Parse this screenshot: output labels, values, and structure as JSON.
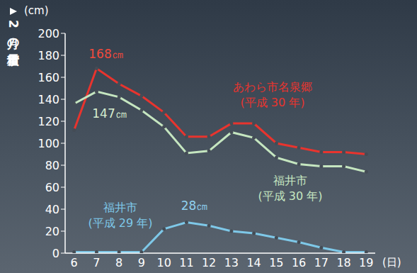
{
  "chart_data": {
    "type": "line",
    "ylabel": "2月の積雪量",
    "yunit": "(cm)",
    "xunit": "(日)",
    "x": [
      6,
      7,
      8,
      9,
      10,
      11,
      12,
      13,
      14,
      15,
      16,
      17,
      18,
      19
    ],
    "xlim": [
      5.6,
      19.4
    ],
    "xticks": [
      6,
      7,
      8,
      9,
      10,
      11,
      12,
      13,
      14,
      15,
      16,
      17,
      18,
      19
    ],
    "ylim": [
      0,
      200
    ],
    "yticks": [
      0,
      20,
      40,
      60,
      80,
      100,
      120,
      140,
      160,
      180,
      200
    ],
    "grid": false,
    "series": [
      {
        "name": "あわら市名泉郷",
        "period": "(平成 30 年)",
        "color": "#e8342e",
        "marker": "circle",
        "values": [
          112,
          168,
          154,
          143,
          128,
          106,
          106,
          118,
          118,
          100,
          96,
          92,
          92,
          90
        ]
      },
      {
        "name": "福井市",
        "period": "(平成 30 年)",
        "color": "#c5e6c0",
        "marker": "circle",
        "values": [
          136,
          147,
          142,
          130,
          115,
          91,
          93,
          110,
          105,
          87,
          81,
          79,
          79,
          74
        ]
      },
      {
        "name": "福井市",
        "period": "(平成 29 年)",
        "color": "#7ec8e8",
        "marker": "circle",
        "values": [
          1,
          1,
          1,
          1,
          22,
          28,
          25,
          20,
          18,
          14,
          10,
          5,
          1,
          1
        ]
      }
    ],
    "annotations": [
      {
        "text": "168㎝",
        "color": "#f04a3c"
      },
      {
        "text": "147㎝",
        "color": "#d8efd0"
      },
      {
        "text": "28㎝",
        "color": "#8fd0f0"
      }
    ]
  }
}
